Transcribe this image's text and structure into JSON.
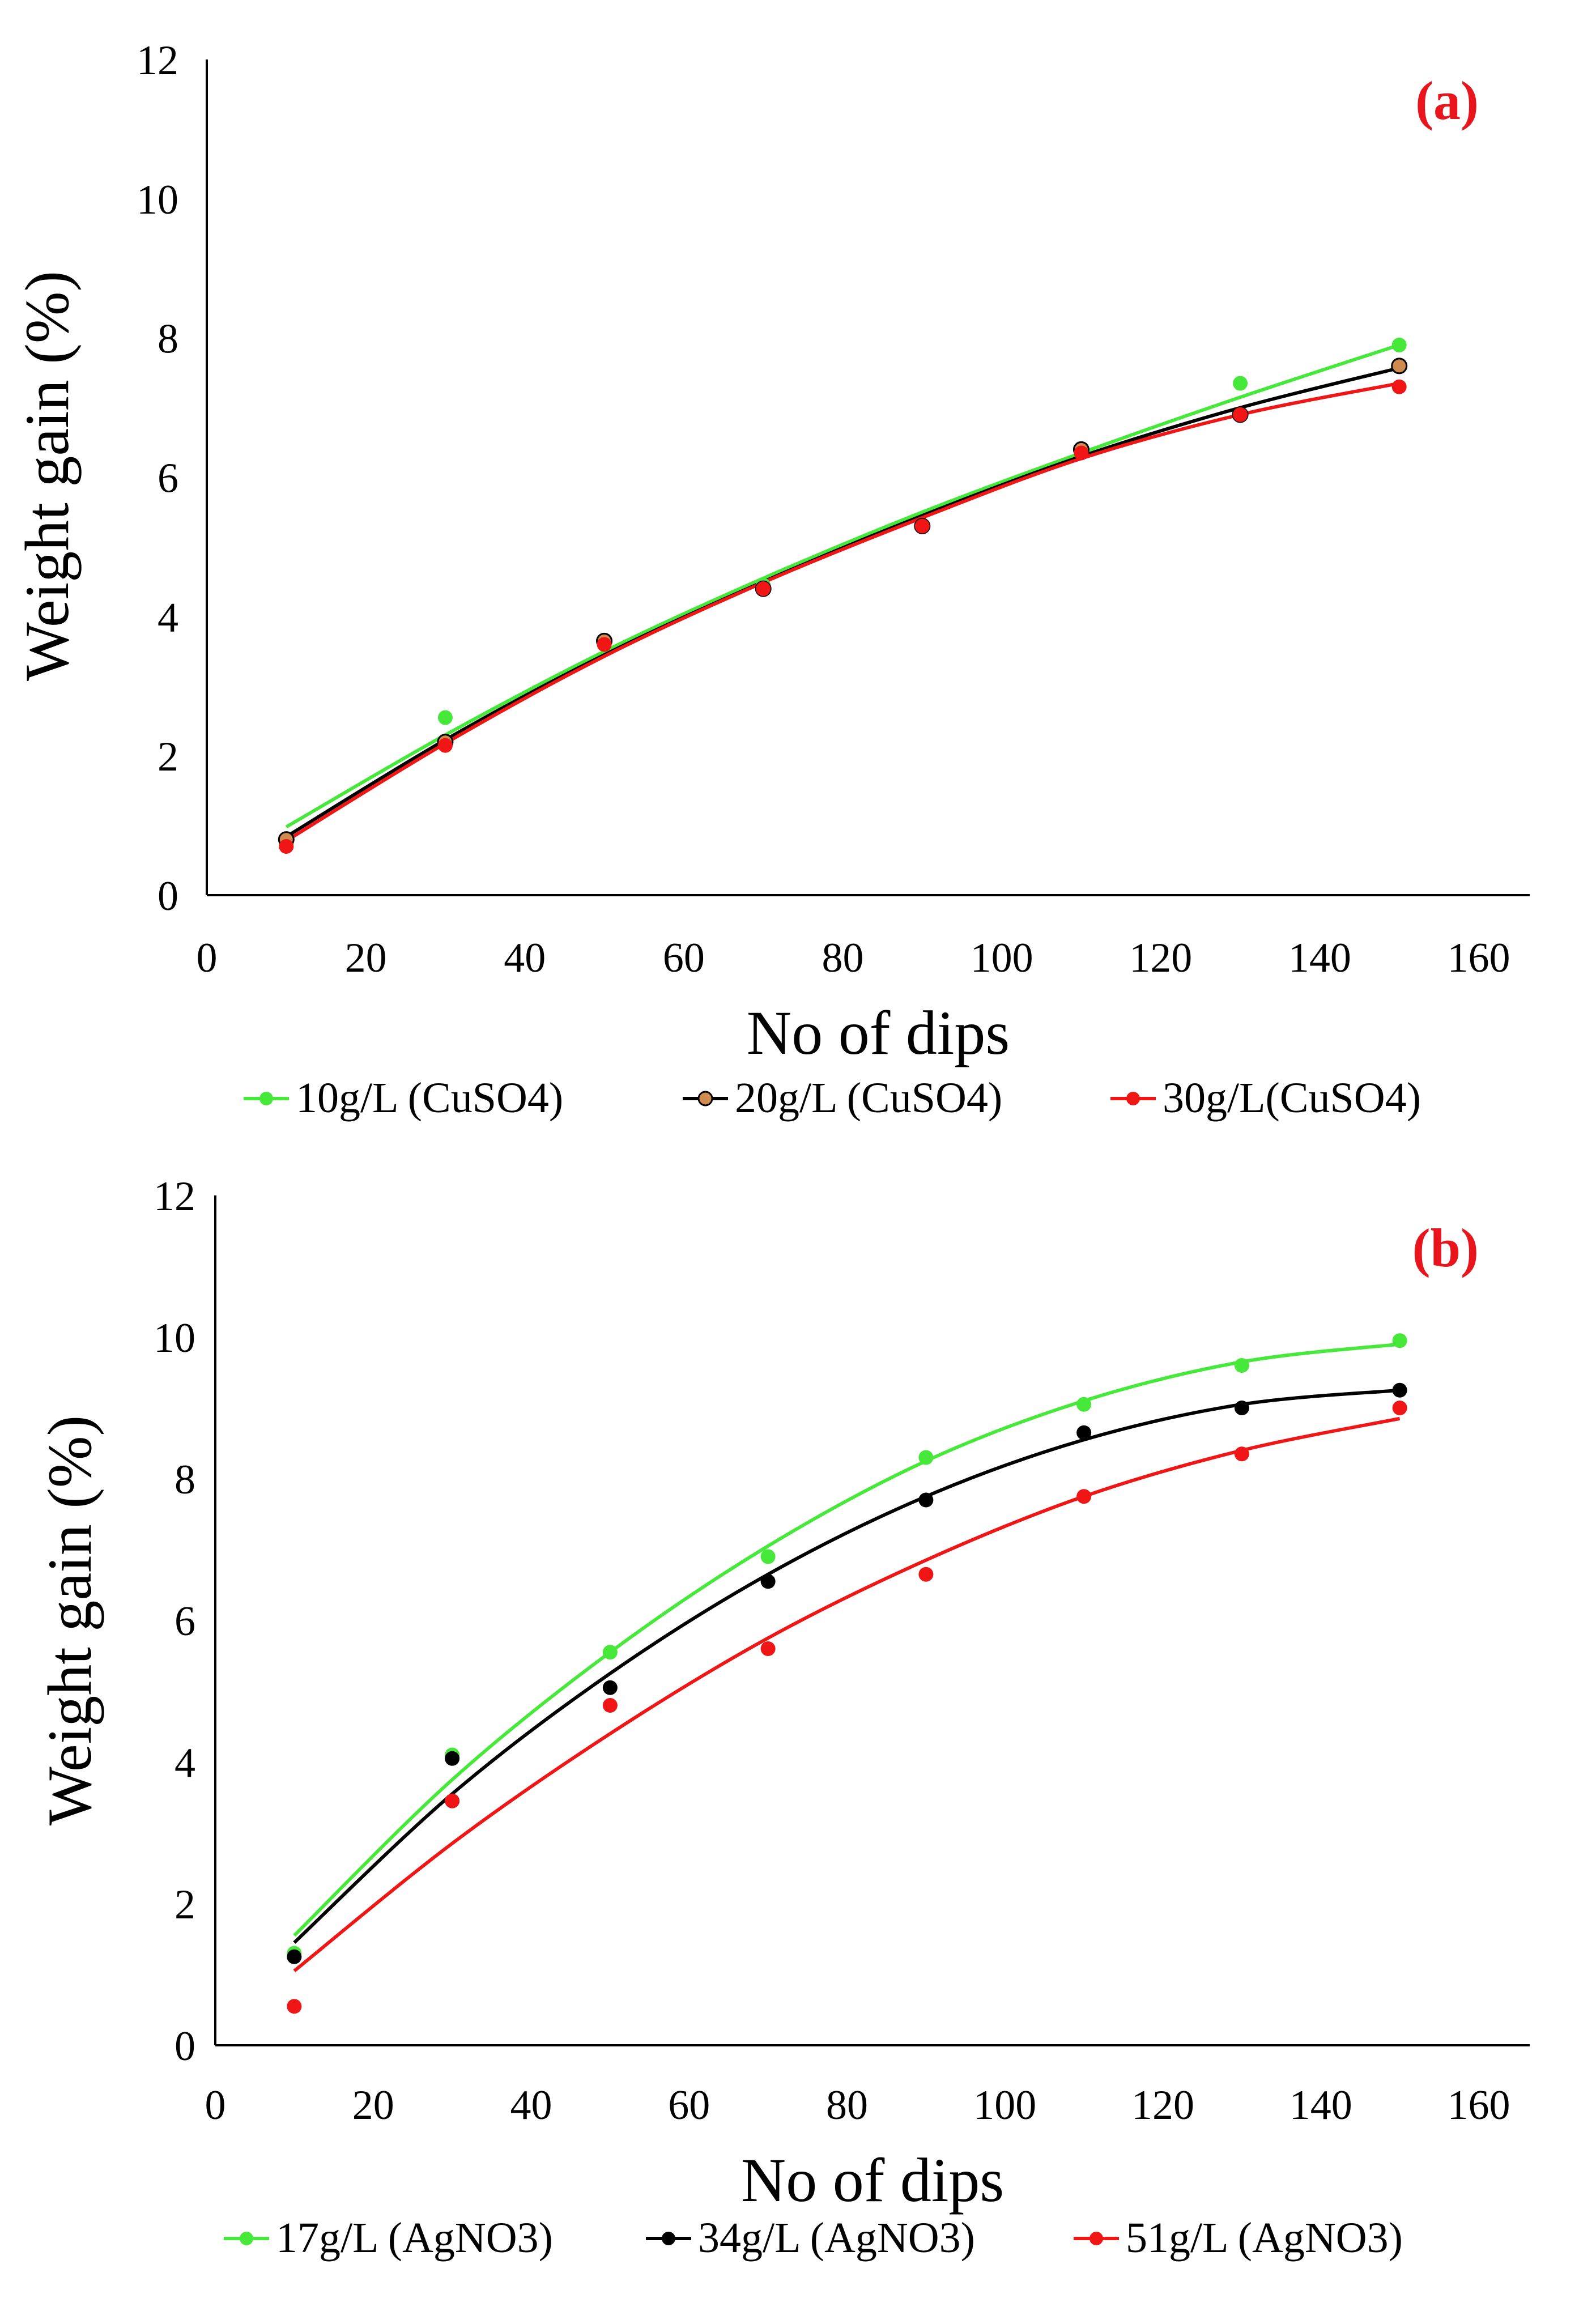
{
  "colors": {
    "green": "#46e83a",
    "black": "#000000",
    "red": "#f01616",
    "orange_marker": "#cf8a4d",
    "panel_label": "#e8161c"
  },
  "chart_data": [
    {
      "type": "scatter",
      "panel_label": "(a)",
      "title": "",
      "xlabel": "No of dips",
      "ylabel": "Weight gain (%)",
      "xlim": [
        0,
        160
      ],
      "ylim": [
        0,
        12
      ],
      "x_ticks": [
        0,
        20,
        40,
        60,
        80,
        100,
        120,
        140,
        160
      ],
      "y_ticks": [
        0,
        2,
        4,
        6,
        8,
        10,
        12
      ],
      "grid": false,
      "legend_position": "bottom",
      "x": [
        10,
        30,
        50,
        70,
        90,
        110,
        130,
        150
      ],
      "series": [
        {
          "name": "10g/L (CuSO4)",
          "color": "green",
          "marker_color": "green",
          "values": [
            0.75,
            2.55,
            3.65,
            4.45,
            5.3,
            6.4,
            7.35,
            7.9
          ],
          "trend": [
            0.98,
            2.3,
            3.5,
            4.55,
            5.5,
            6.35,
            7.15,
            7.9
          ]
        },
        {
          "name": "20g/L (CuSO4)",
          "color": "black",
          "marker_color": "orange_marker",
          "values": [
            0.8,
            2.2,
            3.65,
            4.4,
            5.3,
            6.4,
            6.9,
            7.6
          ],
          "trend": [
            0.84,
            2.23,
            3.45,
            4.5,
            5.45,
            6.3,
            7.0,
            7.57
          ]
        },
        {
          "name": "30g/L(CuSO4)",
          "color": "red",
          "marker_color": "red",
          "values": [
            0.7,
            2.15,
            3.6,
            4.4,
            5.3,
            6.35,
            6.9,
            7.3
          ],
          "trend": [
            0.78,
            2.18,
            3.43,
            4.49,
            5.42,
            6.27,
            6.9,
            7.35
          ]
        }
      ]
    },
    {
      "type": "scatter",
      "panel_label": "(b)",
      "title": "",
      "xlabel": "No of dips",
      "ylabel": "Weight gain (%)",
      "xlim": [
        0,
        160
      ],
      "ylim": [
        0,
        12
      ],
      "x_ticks": [
        0,
        20,
        40,
        60,
        80,
        100,
        120,
        140,
        160
      ],
      "y_ticks": [
        0,
        2,
        4,
        6,
        8,
        10,
        12
      ],
      "grid": false,
      "legend_position": "bottom",
      "x": [
        10,
        30,
        50,
        70,
        90,
        110,
        130,
        150
      ],
      "series": [
        {
          "name": "17g/L (AgNO3)",
          "color": "green",
          "marker_color": "green",
          "values": [
            1.3,
            4.1,
            5.55,
            6.9,
            8.3,
            9.05,
            9.6,
            9.95
          ],
          "trend": [
            1.55,
            3.75,
            5.55,
            7.05,
            8.25,
            9.1,
            9.65,
            9.9
          ]
        },
        {
          "name": "34g/L (AgNO3)",
          "color": "black",
          "marker_color": "black",
          "values": [
            1.25,
            4.05,
            5.05,
            6.55,
            7.7,
            8.65,
            9.0,
            9.25
          ],
          "trend": [
            1.45,
            3.55,
            5.25,
            6.65,
            7.75,
            8.55,
            9.05,
            9.25
          ]
        },
        {
          "name": "51g/L (AgNO3)",
          "color": "red",
          "marker_color": "red",
          "values": [
            0.55,
            3.45,
            4.8,
            5.6,
            6.65,
            7.75,
            8.35,
            9.0
          ],
          "trend": [
            1.05,
            2.85,
            4.4,
            5.75,
            6.85,
            7.75,
            8.4,
            8.85
          ]
        }
      ]
    }
  ]
}
